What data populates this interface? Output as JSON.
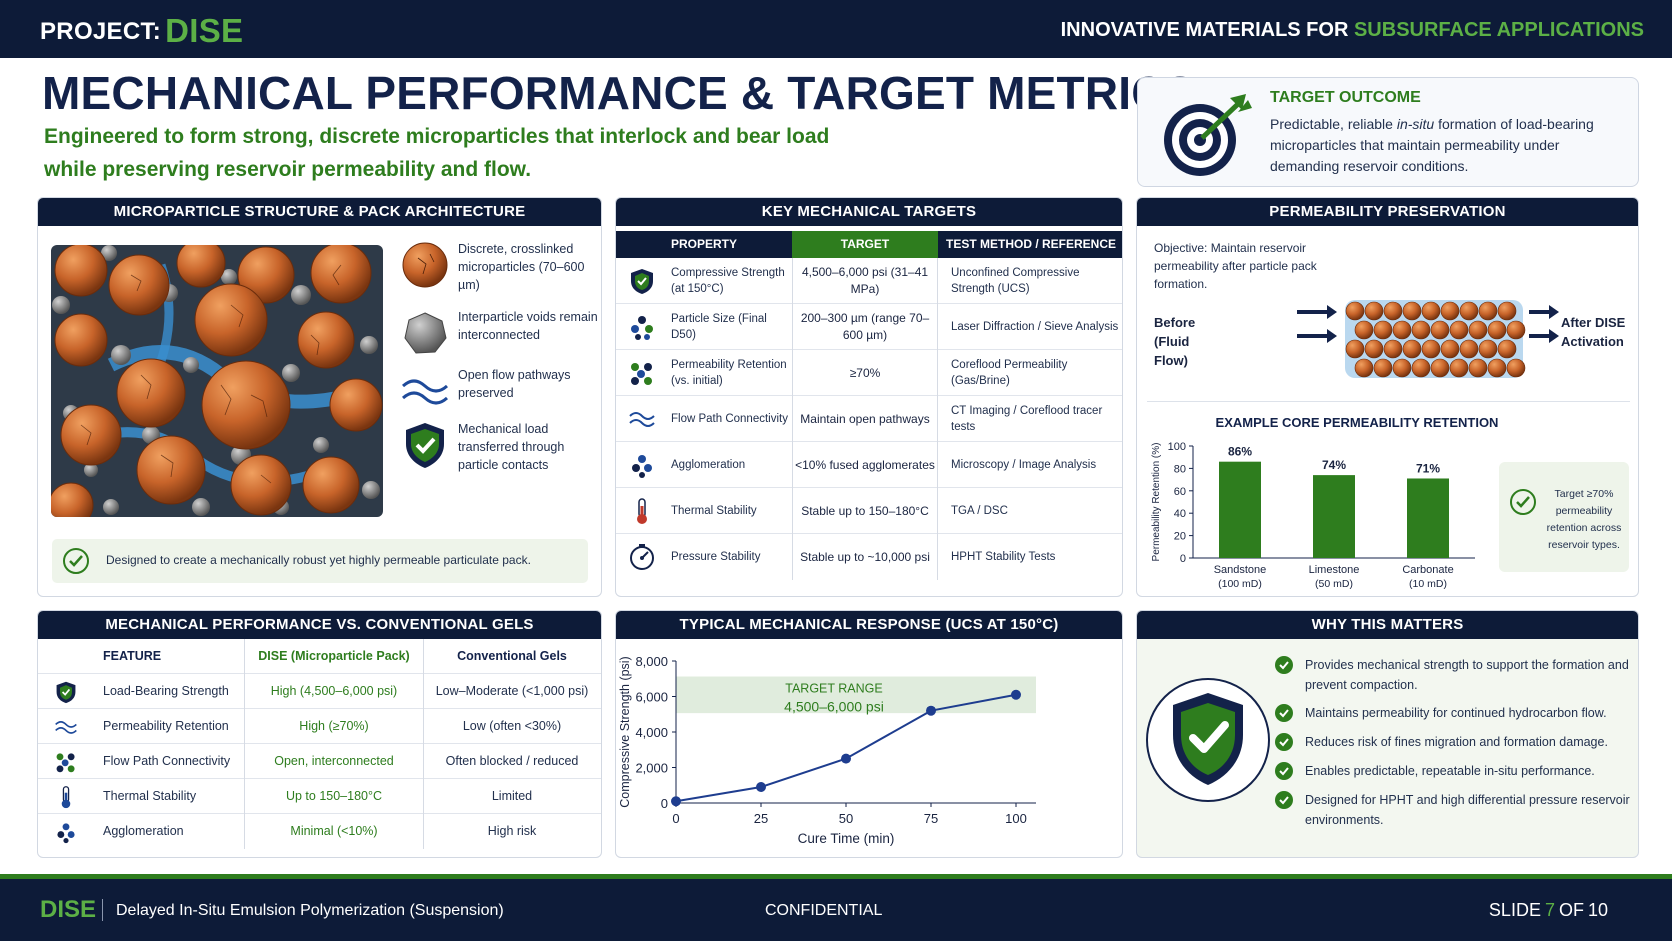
{
  "header": {
    "project_label": "PROJECT:",
    "project_name": "DISE",
    "tagline_prefix": "INNOVATIVE MATERIALS FOR",
    "tagline_highlight": "SUBSURFACE APPLICATIONS"
  },
  "title": "MECHANICAL PERFORMANCE & TARGET METRICS",
  "subtitle": "Engineered to form strong, discrete microparticles that interlock and bear load while preserving reservoir permeability and flow.",
  "target_outcome": {
    "heading": "TARGET OUTCOME",
    "text_before": "Predictable, reliable ",
    "text_italic": "in-situ",
    "text_after": " formation of load-bearing microparticles that maintain permeability under demanding reservoir conditions."
  },
  "microparticle_panel": {
    "title": "MICROPARTICLE STRUCTURE & PACK ARCHITECTURE",
    "legend": [
      {
        "icon": "orange-sphere-icon",
        "text": "Discrete, crosslinked microparticles (70–600 µm)"
      },
      {
        "icon": "gray-void-particle-icon",
        "text": "Interparticle voids remain interconnected"
      },
      {
        "icon": "flow-waves-icon",
        "text": "Open flow pathways preserved"
      },
      {
        "icon": "shield-check-icon",
        "text": "Mechanical load transferred through particle contacts"
      }
    ],
    "note": "Designed to create a mechanically robust yet highly permeable particulate pack."
  },
  "key_targets": {
    "title": "KEY MECHANICAL TARGETS",
    "columns": [
      "PROPERTY",
      "TARGET",
      "TEST METHOD / REFERENCE"
    ],
    "rows": [
      {
        "icon": "shield-icon",
        "property": "Compressive Strength (at 150°C)",
        "target": "4,500–6,000 psi (31–41 MPa)",
        "method": "Unconfined Compressive Strength (UCS)"
      },
      {
        "icon": "particles-icon",
        "property": "Particle Size (Final D50)",
        "target": "200–300 µm (range 70–600 µm)",
        "method": "Laser Diffraction / Sieve Analysis"
      },
      {
        "icon": "particle-cluster-icon",
        "property": "Permeability Retention (vs. initial)",
        "target": "≥70%",
        "method": "Coreflood Permeability (Gas/Brine)"
      },
      {
        "icon": "flow-waves-icon",
        "property": "Flow Path Connectivity",
        "target": "Maintain open pathways",
        "method": "CT Imaging / Coreflood tracer tests"
      },
      {
        "icon": "agglomerate-icon",
        "property": "Agglomeration",
        "target": "<10% fused agglomerates",
        "method": "Microscopy / Image Analysis"
      },
      {
        "icon": "thermometer-icon",
        "property": "Thermal Stability",
        "target": "Stable up to 150–180°C",
        "method": "TGA / DSC"
      },
      {
        "icon": "pressure-gauge-icon",
        "property": "Pressure Stability",
        "target": "Stable up to ~10,000 psi",
        "method": "HPHT Stability Tests"
      }
    ],
    "colors": {
      "header_navy": "#0d1b38",
      "header_green": "#2e7d1e"
    }
  },
  "permeability_panel": {
    "title": "PERMEABILITY PRESERVATION",
    "objective": "Objective: Maintain reservoir permeability after particle pack formation.",
    "before_label": "Before (Fluid Flow)",
    "after_label": "After DISE Activation",
    "chart_title": "EXAMPLE CORE PERMEABILITY RETENTION",
    "callout": "Target ≥70% permeability retention across reservoir types."
  },
  "gels_panel": {
    "title": "MECHANICAL PERFORMANCE VS. CONVENTIONAL GELS",
    "columns": [
      "FEATURE",
      "DISE (Microparticle Pack)",
      "Conventional Gels"
    ],
    "rows": [
      {
        "icon": "shield-icon",
        "feature": "Load-Bearing Strength",
        "dise": "High (4,500–6,000 psi)",
        "gels": "Low–Moderate (<1,000 psi)"
      },
      {
        "icon": "flow-waves-icon",
        "feature": "Permeability Retention",
        "dise": "High (≥70%)",
        "gels": "Low (often <30%)"
      },
      {
        "icon": "particle-cluster-icon",
        "feature": "Flow Path Connectivity",
        "dise": "Open, interconnected",
        "gels": "Often blocked / reduced"
      },
      {
        "icon": "thermometer-icon",
        "feature": "Thermal Stability",
        "dise": "Up to 150–180°C",
        "gels": "Limited"
      },
      {
        "icon": "agglomerate-icon",
        "feature": "Agglomeration",
        "dise": "Minimal  (<10%)",
        "gels": "High risk"
      }
    ]
  },
  "ucs_panel": {
    "title": "TYPICAL MECHANICAL RESPONSE (UCS AT 150°C)",
    "band_label": "TARGET RANGE",
    "band_value": "4,500–6,000 psi"
  },
  "why_panel": {
    "title": "WHY THIS MATTERS",
    "items": [
      "Provides mechanical strength to support the formation and prevent compaction.",
      "Maintains permeability for continued hydrocarbon flow.",
      "Reduces risk of fines migration and formation damage.",
      "Enables predictable, repeatable in-situ performance.",
      "Designed for HPHT and high differential pressure reservoir environments."
    ]
  },
  "footer": {
    "brand": "DISE",
    "description": "Delayed In-Situ Emulsion Polymerization (Suspension)",
    "confidential": "CONFIDENTIAL",
    "slide_label": "SLIDE",
    "slide_current": "7",
    "slide_of": "OF",
    "slide_total": "10"
  },
  "colors": {
    "navy": "#0d1b38",
    "green": "#2e7d1e",
    "accent_green": "#5cb046",
    "orange": "#c8642a",
    "blue_line": "#1e3d8f"
  },
  "chart_data": [
    {
      "type": "bar",
      "title": "EXAMPLE CORE PERMEABILITY RETENTION",
      "categories": [
        "Sandstone",
        "Limestone",
        "Carbonate"
      ],
      "category_sublabels": [
        "(100 mD)",
        "(50 mD)",
        "(10 mD)"
      ],
      "values": [
        86,
        74,
        71
      ],
      "data_labels": [
        "86%",
        "74%",
        "71%"
      ],
      "ylabel": "Permeability Retention (%)",
      "ylim": [
        0,
        100
      ],
      "yticks": [
        0,
        20,
        40,
        60,
        80,
        100
      ],
      "color": "#2e7d1e"
    },
    {
      "type": "line",
      "title": "",
      "x": [
        0,
        25,
        50,
        75,
        100
      ],
      "y": [
        100,
        900,
        2500,
        5200,
        6100
      ],
      "xlabel": "Cure Time (min)",
      "ylabel": "Compressive Strength (psi)",
      "xlim": [
        0,
        100
      ],
      "ylim": [
        0,
        8000
      ],
      "xticks": [
        0,
        25,
        50,
        75,
        100
      ],
      "yticks": [
        0,
        2000,
        4000,
        6000,
        8000
      ],
      "ytick_labels": [
        "0",
        "2,000",
        "4,000",
        "6,000",
        "8,000"
      ],
      "target_band": [
        4500,
        6000
      ],
      "color": "#1e3d8f"
    }
  ]
}
